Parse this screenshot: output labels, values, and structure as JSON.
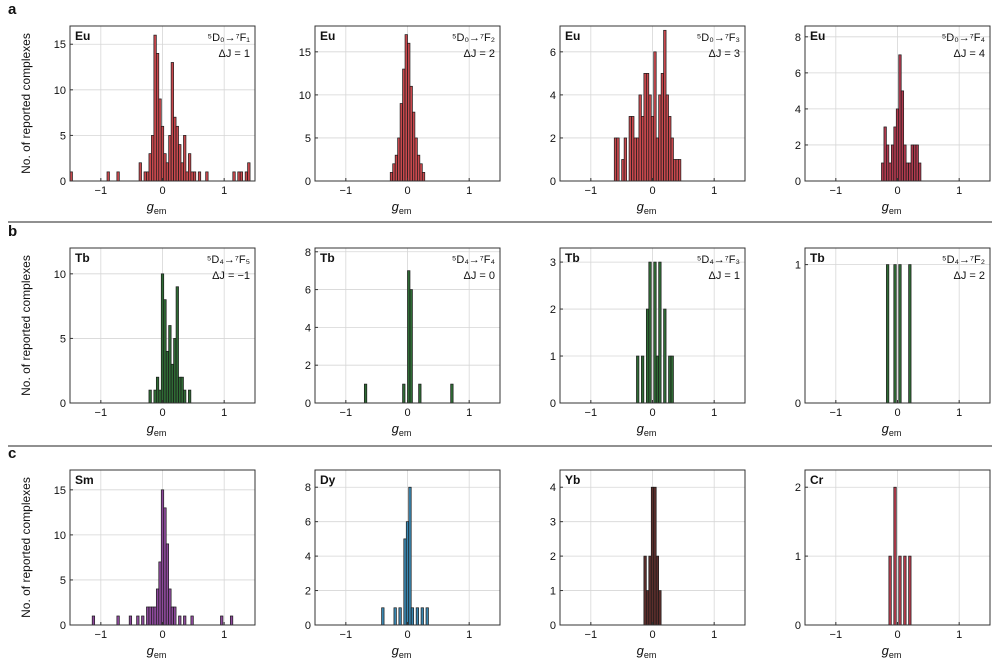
{
  "figure": {
    "ylabel": "No. of reported complexes",
    "xlabel_main": "g",
    "xlabel_sub": "em",
    "rows": [
      {
        "letter": "a"
      },
      {
        "letter": "b"
      },
      {
        "letter": "c"
      }
    ]
  },
  "chart_data": [
    {
      "type": "bar",
      "row": 0,
      "col": 0,
      "ion": "Eu",
      "transition": "⁵D₀→⁷F₁",
      "delta": "ΔJ = 1",
      "bar_color": "#c8484d",
      "xlim": [
        -1.5,
        1.5
      ],
      "ylim": [
        0,
        17
      ],
      "yticks": [
        0,
        5,
        10,
        15
      ],
      "xticks": [
        -1,
        0,
        1
      ],
      "bin_width": 0.04,
      "grid": true,
      "x": [
        -1.48,
        -0.88,
        -0.72,
        -0.36,
        -0.28,
        -0.24,
        -0.2,
        -0.16,
        -0.12,
        -0.08,
        -0.04,
        0,
        0.04,
        0.08,
        0.12,
        0.16,
        0.2,
        0.24,
        0.28,
        0.32,
        0.36,
        0.4,
        0.44,
        0.48,
        0.52,
        0.6,
        0.72,
        1.16,
        1.24,
        1.28,
        1.36,
        1.4
      ],
      "values": [
        1,
        1,
        1,
        2,
        1,
        1,
        3,
        5,
        16,
        14,
        9,
        6,
        3,
        2,
        5,
        13,
        7,
        6,
        4,
        2,
        5,
        1,
        3,
        1,
        1,
        1,
        1,
        1,
        1,
        1,
        1,
        2
      ]
    },
    {
      "type": "bar",
      "row": 0,
      "col": 1,
      "ion": "Eu",
      "transition": "⁵D₀→⁷F₂",
      "delta": "ΔJ = 2",
      "bar_color": "#c8484d",
      "xlim": [
        -1.5,
        1.5
      ],
      "ylim": [
        0,
        18
      ],
      "yticks": [
        0,
        5,
        10,
        15
      ],
      "xticks": [
        -1,
        0,
        1
      ],
      "bin_width": 0.04,
      "grid": true,
      "x": [
        -0.26,
        -0.22,
        -0.18,
        -0.14,
        -0.1,
        -0.06,
        -0.02,
        0.02,
        0.06,
        0.1,
        0.14,
        0.18,
        0.22,
        0.26
      ],
      "values": [
        1,
        2,
        3,
        5,
        9,
        13,
        17,
        16,
        11,
        8,
        5,
        3,
        2,
        1
      ]
    },
    {
      "type": "bar",
      "row": 0,
      "col": 2,
      "ion": "Eu",
      "transition": "⁵D₀→⁷F₃",
      "delta": "ΔJ = 3",
      "bar_color": "#c8484d",
      "xlim": [
        -1.5,
        1.5
      ],
      "ylim": [
        0,
        7.2
      ],
      "yticks": [
        0,
        2,
        4,
        6
      ],
      "xticks": [
        -1,
        0,
        1
      ],
      "bin_width": 0.04,
      "grid": true,
      "x": [
        -0.6,
        -0.56,
        -0.48,
        -0.44,
        -0.36,
        -0.32,
        -0.28,
        -0.24,
        -0.2,
        -0.16,
        -0.12,
        -0.08,
        -0.04,
        0,
        0.04,
        0.08,
        0.12,
        0.16,
        0.2,
        0.24,
        0.28,
        0.32,
        0.36,
        0.4,
        0.44
      ],
      "values": [
        2,
        2,
        1,
        2,
        3,
        3,
        2,
        2,
        4,
        3,
        5,
        5,
        4,
        3,
        6,
        2,
        4,
        5,
        7,
        4,
        3,
        2,
        1,
        1,
        1
      ]
    },
    {
      "type": "bar",
      "row": 0,
      "col": 3,
      "ion": "Eu",
      "transition": "⁵D₀→⁷F₄",
      "delta": "ΔJ = 4",
      "bar_color": "#b03a4e",
      "xlim": [
        -1.5,
        1.5
      ],
      "ylim": [
        0,
        8.6
      ],
      "yticks": [
        0,
        2,
        4,
        6,
        8
      ],
      "xticks": [
        -1,
        0,
        1
      ],
      "bin_width": 0.04,
      "grid": true,
      "x": [
        -0.24,
        -0.2,
        -0.16,
        -0.12,
        -0.08,
        -0.04,
        0,
        0.04,
        0.08,
        0.12,
        0.16,
        0.2,
        0.24,
        0.28,
        0.32,
        0.36
      ],
      "values": [
        1,
        3,
        2,
        1,
        2,
        3,
        4,
        7,
        5,
        2,
        1,
        1,
        2,
        2,
        2,
        1
      ]
    },
    {
      "type": "bar",
      "row": 1,
      "col": 0,
      "ion": "Tb",
      "transition": "⁵D₄→⁷F₅",
      "delta": "ΔJ = −1",
      "bar_color": "#2f6b35",
      "xlim": [
        -1.5,
        1.5
      ],
      "ylim": [
        0,
        12
      ],
      "yticks": [
        0,
        5,
        10
      ],
      "xticks": [
        -1,
        0,
        1
      ],
      "bin_width": 0.04,
      "grid": true,
      "x": [
        -0.2,
        -0.12,
        -0.08,
        -0.04,
        0,
        0.04,
        0.08,
        0.12,
        0.16,
        0.2,
        0.24,
        0.28,
        0.32,
        0.36,
        0.44
      ],
      "values": [
        1,
        1,
        2,
        1,
        10,
        8,
        4,
        6,
        3,
        5,
        9,
        2,
        2,
        1,
        1
      ]
    },
    {
      "type": "bar",
      "row": 1,
      "col": 1,
      "ion": "Tb",
      "transition": "⁵D₄→⁷F₄",
      "delta": "ΔJ = 0",
      "bar_color": "#2f6b35",
      "xlim": [
        -1.5,
        1.5
      ],
      "ylim": [
        0,
        8.2
      ],
      "yticks": [
        0,
        2,
        4,
        6,
        8
      ],
      "xticks": [
        -1,
        0,
        1
      ],
      "bin_width": 0.04,
      "grid": true,
      "x": [
        -0.68,
        -0.06,
        0.02,
        0.06,
        0.2,
        0.72
      ],
      "values": [
        1,
        1,
        7,
        6,
        1,
        1
      ]
    },
    {
      "type": "bar",
      "row": 1,
      "col": 2,
      "ion": "Tb",
      "transition": "⁵D₄→⁷F₃",
      "delta": "ΔJ = 1",
      "bar_color": "#2f6b35",
      "xlim": [
        -1.5,
        1.5
      ],
      "ylim": [
        0,
        3.3
      ],
      "yticks": [
        0,
        1,
        2,
        3
      ],
      "xticks": [
        -1,
        0,
        1
      ],
      "bin_width": 0.04,
      "grid": true,
      "x": [
        -0.24,
        -0.16,
        -0.08,
        -0.04,
        0.04,
        0.08,
        0.12,
        0.2,
        0.28,
        0.32
      ],
      "values": [
        1,
        1,
        2,
        3,
        3,
        1,
        3,
        2,
        1,
        1
      ]
    },
    {
      "type": "bar",
      "row": 1,
      "col": 3,
      "ion": "Tb",
      "transition": "⁵D₄→⁷F₂",
      "delta": "ΔJ = 2",
      "bar_color": "#2f6b35",
      "xlim": [
        -1.5,
        1.5
      ],
      "ylim": [
        0,
        1.12
      ],
      "yticks": [
        0,
        1
      ],
      "xticks": [
        -1,
        0,
        1
      ],
      "bin_width": 0.04,
      "grid": true,
      "x": [
        -0.16,
        -0.04,
        0.04,
        0.2
      ],
      "values": [
        1,
        1,
        1,
        1
      ]
    },
    {
      "type": "bar",
      "row": 2,
      "col": 0,
      "ion": "Sm",
      "transition": "",
      "delta": "",
      "bar_color": "#8e4a9c",
      "xlim": [
        -1.5,
        1.5
      ],
      "ylim": [
        0,
        17.2
      ],
      "yticks": [
        0,
        5,
        10,
        15
      ],
      "xticks": [
        -1,
        0,
        1
      ],
      "bin_width": 0.04,
      "grid": true,
      "x": [
        -1.12,
        -0.72,
        -0.52,
        -0.4,
        -0.32,
        -0.24,
        -0.2,
        -0.16,
        -0.12,
        -0.08,
        -0.04,
        0,
        0.04,
        0.08,
        0.12,
        0.16,
        0.2,
        0.28,
        0.36,
        0.48,
        0.96,
        1.12
      ],
      "values": [
        1,
        1,
        1,
        1,
        1,
        2,
        2,
        2,
        2,
        4,
        7,
        15,
        13,
        9,
        4,
        2,
        2,
        1,
        1,
        1,
        1,
        1
      ]
    },
    {
      "type": "bar",
      "row": 2,
      "col": 1,
      "ion": "Dy",
      "transition": "",
      "delta": "",
      "bar_color": "#3a86b0",
      "xlim": [
        -1.5,
        1.5
      ],
      "ylim": [
        0,
        9
      ],
      "yticks": [
        0,
        2,
        4,
        6,
        8
      ],
      "xticks": [
        -1,
        0,
        1
      ],
      "bin_width": 0.04,
      "grid": true,
      "x": [
        -0.4,
        -0.2,
        -0.12,
        -0.04,
        0,
        0.04,
        0.08,
        0.16,
        0.24,
        0.32
      ],
      "values": [
        1,
        1,
        1,
        5,
        6,
        8,
        1,
        1,
        1,
        1
      ]
    },
    {
      "type": "bar",
      "row": 2,
      "col": 2,
      "ion": "Yb",
      "transition": "",
      "delta": "",
      "bar_color": "#5c2e2c",
      "xlim": [
        -1.5,
        1.5
      ],
      "ylim": [
        0,
        4.5
      ],
      "yticks": [
        0,
        1,
        2,
        3,
        4
      ],
      "xticks": [
        -1,
        0,
        1
      ],
      "bin_width": 0.04,
      "grid": true,
      "x": [
        -0.12,
        -0.08,
        -0.04,
        0,
        0.04,
        0.08,
        0.12
      ],
      "values": [
        2,
        1,
        2,
        4,
        4,
        2,
        1
      ]
    },
    {
      "type": "bar",
      "row": 2,
      "col": 3,
      "ion": "Cr",
      "transition": "",
      "delta": "",
      "bar_color": "#b53b4c",
      "xlim": [
        -1.5,
        1.5
      ],
      "ylim": [
        0,
        2.25
      ],
      "yticks": [
        0,
        1,
        2
      ],
      "xticks": [
        -1,
        0,
        1
      ],
      "bin_width": 0.04,
      "grid": true,
      "x": [
        -0.12,
        -0.04,
        0.04,
        0.12,
        0.2
      ],
      "values": [
        1,
        2,
        1,
        1,
        1
      ]
    }
  ]
}
